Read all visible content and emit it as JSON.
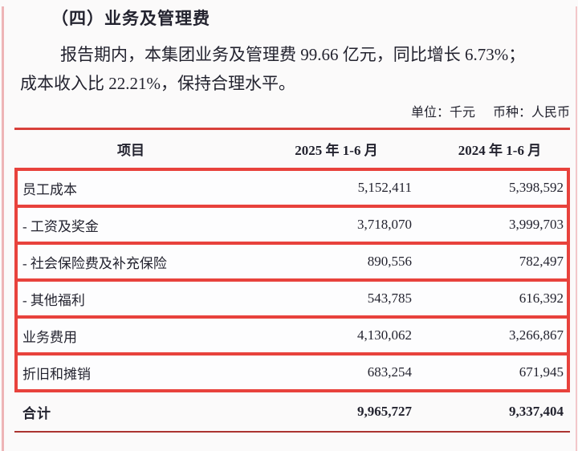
{
  "section": {
    "heading": "（四）业务及管理费",
    "paragraph_line1": "报告期内，本集团业务及管理费 99.66 亿元，同比增长 6.73%；",
    "paragraph_line2": "成本收入比 22.21%，保持合理水平。"
  },
  "unit_note": {
    "unit": "单位：千元",
    "currency": "币种：人民币"
  },
  "table": {
    "columns": [
      "项目",
      "2025 年 1-6 月",
      "2024 年 1-6 月"
    ],
    "rows": [
      {
        "label": "员工成本",
        "v2025": "5,152,411",
        "v2024": "5,398,592"
      },
      {
        "label": "- 工资及奖金",
        "v2025": "3,718,070",
        "v2024": "3,999,703"
      },
      {
        "label": "- 社会保险费及补充保险",
        "v2025": "890,556",
        "v2024": "782,497"
      },
      {
        "label": "- 其他福利",
        "v2025": "543,785",
        "v2024": "616,392"
      },
      {
        "label": "业务费用",
        "v2025": "4,130,062",
        "v2024": "3,266,867"
      },
      {
        "label": "折旧和摊销",
        "v2025": "683,254",
        "v2024": "671,945"
      }
    ],
    "total": {
      "label": "合计",
      "v2025": "9,965,727",
      "v2024": "9,337,404"
    }
  },
  "colors": {
    "highlight_box_red": "#e8423c",
    "rule_top_red": "#d8403a",
    "rule_bottom_red": "#ab3430",
    "text_dark": "#23232f",
    "page_background": "#fbfafa",
    "edge_pink_left": "#eeb4b6",
    "edge_pink_right": "#f3c7c9",
    "row_background": "#fdfdfe"
  }
}
